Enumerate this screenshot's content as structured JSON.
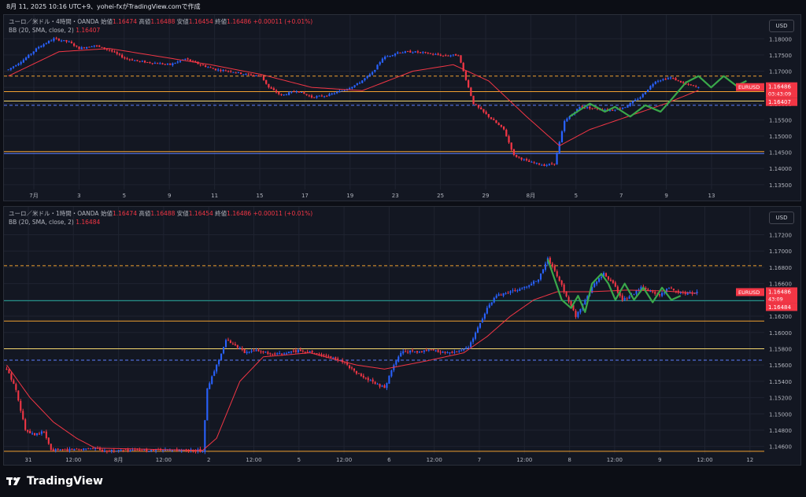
{
  "header": {
    "caption": "8月 11, 2025 10:16 UTC+9、yohei-fxがTradingView.comで作成"
  },
  "footer": {
    "brand": "TradingView"
  },
  "colors": {
    "bull": "#2962ff",
    "bear": "#f23645",
    "sma": "#f23645",
    "orange_line": "#f0a030",
    "yellow_line": "#f5d76e",
    "blue_dashed": "#5b7fff",
    "green_line": "#3aa84a",
    "teal_line": "#26a69a",
    "grid": "#1f2330",
    "axis_text": "#b2b5be"
  },
  "chart_data": [
    {
      "type": "candlestick",
      "symbol": "EURUSD",
      "legend": {
        "title": "ユーロ／米ドル・4時間・OANDA",
        "open_label": "始値",
        "open": "1.16474",
        "high_label": "高値",
        "high": "1.16488",
        "low_label": "安値",
        "low": "1.16454",
        "close_label": "終値",
        "close": "1.16486",
        "change": "+0.00011 (+0.01%)",
        "indicator": "BB (20, SMA, close, 2)",
        "indicator_value": "1.16407"
      },
      "currency_button": "USD",
      "yaxis_ticks": [
        "1.18000",
        "1.17500",
        "1.17000",
        "1.16500",
        "1.16000",
        "1.15500",
        "1.15000",
        "1.14500",
        "1.14000",
        "1.13500"
      ],
      "ylim": [
        1.1335,
        1.1825
      ],
      "xaxis_ticks": [
        "7月",
        "3",
        "5",
        "9",
        "11",
        "15",
        "17",
        "19",
        "23",
        "25",
        "29",
        "8月",
        "5",
        "7",
        "9",
        "13"
      ],
      "price_label": {
        "symbol": "EURUSD",
        "price": "1.16486",
        "countdown": "03:43:09",
        "sma_value": "1.16407"
      },
      "hlines": [
        {
          "style": "dashed",
          "color": "orange",
          "y": 1.1685
        },
        {
          "style": "solid",
          "color": "orange",
          "y": 1.1637
        },
        {
          "style": "solid",
          "color": "yellow",
          "y": 1.1608
        },
        {
          "style": "dashed",
          "color": "blue",
          "y": 1.1595
        },
        {
          "style": "solid",
          "color": "orange",
          "y": 1.1452
        },
        {
          "style": "solid",
          "color": "blue",
          "y": 1.1446
        }
      ],
      "path_keypoints": [
        [
          0,
          1.1705
        ],
        [
          6,
          1.1735
        ],
        [
          12,
          1.1775
        ],
        [
          18,
          1.18
        ],
        [
          24,
          1.179
        ],
        [
          28,
          1.177
        ],
        [
          34,
          1.178
        ],
        [
          40,
          1.1765
        ],
        [
          46,
          1.174
        ],
        [
          52,
          1.173
        ],
        [
          58,
          1.1725
        ],
        [
          64,
          1.172
        ],
        [
          70,
          1.1738
        ],
        [
          76,
          1.172
        ],
        [
          82,
          1.1705
        ],
        [
          88,
          1.17
        ],
        [
          94,
          1.169
        ],
        [
          100,
          1.1685
        ],
        [
          103,
          1.165
        ],
        [
          108,
          1.1625
        ],
        [
          114,
          1.164
        ],
        [
          120,
          1.162
        ],
        [
          126,
          1.1625
        ],
        [
          132,
          1.164
        ],
        [
          138,
          1.166
        ],
        [
          144,
          1.1695
        ],
        [
          148,
          1.174
        ],
        [
          154,
          1.1758
        ],
        [
          160,
          1.176
        ],
        [
          166,
          1.1755
        ],
        [
          172,
          1.1748
        ],
        [
          178,
          1.175
        ],
        [
          180,
          1.17
        ],
        [
          184,
          1.16
        ],
        [
          190,
          1.156
        ],
        [
          196,
          1.152
        ],
        [
          200,
          1.144
        ],
        [
          206,
          1.142
        ],
        [
          212,
          1.141
        ],
        [
          216,
          1.1415
        ],
        [
          220,
          1.1545
        ],
        [
          226,
          1.159
        ],
        [
          232,
          1.1585
        ],
        [
          238,
          1.158
        ],
        [
          244,
          1.159
        ],
        [
          250,
          1.162
        ],
        [
          256,
          1.167
        ],
        [
          262,
          1.168
        ],
        [
          268,
          1.166
        ],
        [
          273,
          1.1649
        ]
      ],
      "sma_keypoints": [
        [
          0,
          1.1685
        ],
        [
          20,
          1.176
        ],
        [
          40,
          1.177
        ],
        [
          60,
          1.1745
        ],
        [
          80,
          1.172
        ],
        [
          100,
          1.169
        ],
        [
          120,
          1.165
        ],
        [
          140,
          1.164
        ],
        [
          160,
          1.17
        ],
        [
          176,
          1.172
        ],
        [
          190,
          1.167
        ],
        [
          205,
          1.156
        ],
        [
          218,
          1.147
        ],
        [
          230,
          1.152
        ],
        [
          245,
          1.156
        ],
        [
          260,
          1.16
        ],
        [
          273,
          1.1641
        ]
      ],
      "green_keypoints": [
        [
          222,
          1.156
        ],
        [
          230,
          1.16
        ],
        [
          236,
          1.1575
        ],
        [
          240,
          1.159
        ],
        [
          246,
          1.156
        ],
        [
          252,
          1.1595
        ],
        [
          258,
          1.1575
        ],
        [
          262,
          1.161
        ],
        [
          268,
          1.1665
        ],
        [
          273,
          1.1685
        ],
        [
          278,
          1.165
        ],
        [
          283,
          1.1685
        ],
        [
          288,
          1.1655
        ],
        [
          292,
          1.167
        ]
      ]
    },
    {
      "type": "candlestick",
      "symbol": "EURUSD",
      "legend": {
        "title": "ユーロ／米ドル・1時間・OANDA",
        "open_label": "始値",
        "open": "1.16474",
        "high_label": "高値",
        "high": "1.16488",
        "low_label": "安値",
        "low": "1.16454",
        "close_label": "終値",
        "close": "1.16486",
        "change": "+0.00011 (+0.01%)",
        "indicator": "BB (20, SMA, close, 2)",
        "indicator_value": "1.16484"
      },
      "currency_button": "USD",
      "yaxis_ticks": [
        "1.17200",
        "1.17000",
        "1.16800",
        "1.16600",
        "1.16400",
        "1.16200",
        "1.16000",
        "1.15800",
        "1.15600",
        "1.15400",
        "1.15200",
        "1.15000",
        "1.14800",
        "1.14600"
      ],
      "ylim": [
        1.1451,
        1.1735
      ],
      "xaxis_ticks": [
        "31",
        "12:00",
        "8月",
        "12:00",
        "2",
        "12:00",
        "5",
        "12:00",
        "6",
        "12:00",
        "7",
        "12:00",
        "8",
        "12:00",
        "9",
        "12:00",
        "12"
      ],
      "price_label": {
        "symbol": "EURUSD",
        "price": "1.16486",
        "countdown": "43:09",
        "sma_value": "1.16484"
      },
      "hlines": [
        {
          "style": "dashed",
          "color": "orange",
          "y": 1.1682
        },
        {
          "style": "solid",
          "color": "teal",
          "y": 1.1639
        },
        {
          "style": "solid",
          "color": "orange",
          "y": 1.1614
        },
        {
          "style": "solid",
          "color": "yellow",
          "y": 1.158
        },
        {
          "style": "dashed",
          "color": "blue",
          "y": 1.1566
        },
        {
          "style": "solid",
          "color": "orange",
          "y": 1.1454
        }
      ],
      "path_keypoints": [
        [
          0,
          1.1555
        ],
        [
          4,
          1.153
        ],
        [
          8,
          1.148
        ],
        [
          12,
          1.1475
        ],
        [
          16,
          1.1478
        ],
        [
          19,
          1.1455
        ],
        [
          38,
          1.1458
        ],
        [
          40,
          1.1455
        ],
        [
          84,
          1.1455
        ],
        [
          86,
          1.153
        ],
        [
          90,
          1.156
        ],
        [
          94,
          1.159
        ],
        [
          98,
          1.1585
        ],
        [
          102,
          1.1575
        ],
        [
          108,
          1.1578
        ],
        [
          114,
          1.1572
        ],
        [
          120,
          1.1575
        ],
        [
          126,
          1.1578
        ],
        [
          132,
          1.1575
        ],
        [
          138,
          1.157
        ],
        [
          144,
          1.1565
        ],
        [
          150,
          1.155
        ],
        [
          156,
          1.154
        ],
        [
          162,
          1.1532
        ],
        [
          166,
          1.156
        ],
        [
          170,
          1.1578
        ],
        [
          176,
          1.1575
        ],
        [
          182,
          1.1578
        ],
        [
          188,
          1.1575
        ],
        [
          194,
          1.1577
        ],
        [
          198,
          1.1582
        ],
        [
          202,
          1.1605
        ],
        [
          206,
          1.163
        ],
        [
          210,
          1.1645
        ],
        [
          216,
          1.165
        ],
        [
          222,
          1.1655
        ],
        [
          228,
          1.1665
        ],
        [
          232,
          1.169
        ],
        [
          236,
          1.167
        ],
        [
          240,
          1.1645
        ],
        [
          244,
          1.162
        ],
        [
          248,
          1.164
        ],
        [
          252,
          1.166
        ],
        [
          256,
          1.1672
        ],
        [
          260,
          1.166
        ],
        [
          264,
          1.164
        ],
        [
          268,
          1.1645
        ],
        [
          272,
          1.1655
        ],
        [
          276,
          1.165
        ],
        [
          280,
          1.1645
        ],
        [
          284,
          1.1655
        ],
        [
          288,
          1.165
        ],
        [
          292,
          1.1648
        ],
        [
          296,
          1.1649
        ]
      ],
      "sma_keypoints": [
        [
          0,
          1.156
        ],
        [
          10,
          1.152
        ],
        [
          20,
          1.149
        ],
        [
          30,
          1.147
        ],
        [
          38,
          1.1458
        ],
        [
          84,
          1.1455
        ],
        [
          90,
          1.147
        ],
        [
          100,
          1.154
        ],
        [
          110,
          1.157
        ],
        [
          130,
          1.1575
        ],
        [
          150,
          1.156
        ],
        [
          162,
          1.1555
        ],
        [
          180,
          1.1565
        ],
        [
          196,
          1.1575
        ],
        [
          206,
          1.1595
        ],
        [
          216,
          1.162
        ],
        [
          226,
          1.164
        ],
        [
          236,
          1.165
        ],
        [
          250,
          1.165
        ],
        [
          266,
          1.1652
        ],
        [
          282,
          1.1651
        ],
        [
          296,
          1.1648
        ]
      ],
      "green_keypoints": [
        [
          232,
          1.169
        ],
        [
          235,
          1.1665
        ],
        [
          238,
          1.164
        ],
        [
          242,
          1.163
        ],
        [
          245,
          1.1645
        ],
        [
          248,
          1.1625
        ],
        [
          251,
          1.166
        ],
        [
          255,
          1.1672
        ],
        [
          258,
          1.166
        ],
        [
          261,
          1.164
        ],
        [
          265,
          1.166
        ],
        [
          269,
          1.164
        ],
        [
          273,
          1.1655
        ],
        [
          277,
          1.1637
        ],
        [
          281,
          1.1655
        ],
        [
          285,
          1.164
        ],
        [
          289,
          1.1645
        ]
      ]
    }
  ]
}
